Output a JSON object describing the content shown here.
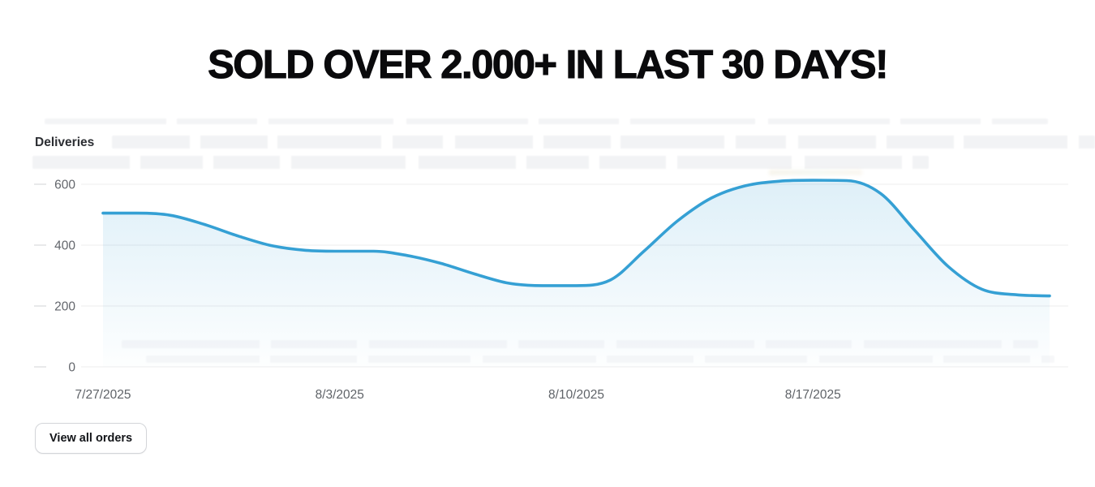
{
  "banner": {
    "title": "SOLD OVER 2.000+ IN LAST 30 DAYS!"
  },
  "chart": {
    "heading": "Deliveries"
  },
  "chart_data": {
    "type": "area",
    "title": "Deliveries",
    "x": [
      "7/27/2025",
      "7/28/2025",
      "7/29/2025",
      "7/30/2025",
      "7/31/2025",
      "8/1/2025",
      "8/2/2025",
      "8/3/2025",
      "8/4/2025",
      "8/5/2025",
      "8/6/2025",
      "8/7/2025",
      "8/8/2025",
      "8/9/2025",
      "8/10/2025",
      "8/11/2025",
      "8/12/2025",
      "8/13/2025",
      "8/14/2025",
      "8/15/2025",
      "8/16/2025",
      "8/17/2025",
      "8/18/2025",
      "8/19/2025",
      "8/20/2025",
      "8/21/2025",
      "8/22/2025",
      "8/23/2025",
      "8/24/2025"
    ],
    "values": [
      505,
      505,
      498,
      468,
      430,
      398,
      383,
      380,
      380,
      366,
      340,
      305,
      275,
      267,
      267,
      285,
      380,
      480,
      555,
      595,
      610,
      613,
      612,
      570,
      450,
      330,
      255,
      237,
      233
    ],
    "x_tick_labels": [
      "7/27/2025",
      "8/3/2025",
      "8/10/2025",
      "8/17/2025"
    ],
    "x_tick_indices": [
      0,
      7,
      14,
      21
    ],
    "y_ticks": [
      0,
      200,
      400,
      600
    ],
    "ylim": [
      0,
      600
    ],
    "xlabel": "",
    "ylabel": "Deliveries",
    "grid": true,
    "legend": false
  },
  "colors": {
    "line_blue": "#35a0d4",
    "grid_line": "#ececee",
    "tick_mark": "#d8dadd",
    "axis_text": "#5f6368",
    "title_text": "#0a0a0c"
  },
  "footer": {
    "view_all_orders_label": "View all orders"
  }
}
